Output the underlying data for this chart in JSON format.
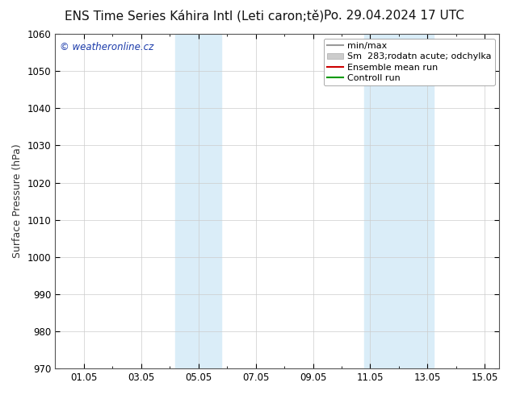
{
  "title_left": "ENS Time Series Káhira Intl (Leti caron;tě)",
  "title_right": "Po. 29.04.2024 17 UTC",
  "ylabel": "Surface Pressure (hPa)",
  "ylim": [
    970,
    1060
  ],
  "yticks": [
    970,
    980,
    990,
    1000,
    1010,
    1020,
    1030,
    1040,
    1050,
    1060
  ],
  "xtick_labels": [
    "01.05",
    "03.05",
    "05.05",
    "07.05",
    "09.05",
    "11.05",
    "13.05",
    "15.05"
  ],
  "xtick_days": [
    1,
    3,
    5,
    7,
    9,
    11,
    13,
    15
  ],
  "xlim": [
    0.0,
    15.5
  ],
  "shaded_bands": [
    {
      "x_start_day": 4.2,
      "x_end_day": 5.8,
      "color": "#daedf8"
    },
    {
      "x_start_day": 10.8,
      "x_end_day": 13.2,
      "color": "#daedf8"
    }
  ],
  "watermark": "© weatheronline.cz",
  "watermark_color": "#1a3aaa",
  "legend_labels": [
    "min/max",
    "Sm  283;rodatn acute; odchylka",
    "Ensemble mean run",
    "Controll run"
  ],
  "legend_line_colors": [
    "#999999",
    "#cccccc",
    "#cc0000",
    "#009900"
  ],
  "background_color": "#ffffff",
  "plot_bg_color": "#ffffff",
  "grid_color": "#cccccc",
  "spine_color": "#555555",
  "title_fontsize": 11,
  "tick_fontsize": 8.5,
  "ylabel_fontsize": 9,
  "legend_fontsize": 8
}
